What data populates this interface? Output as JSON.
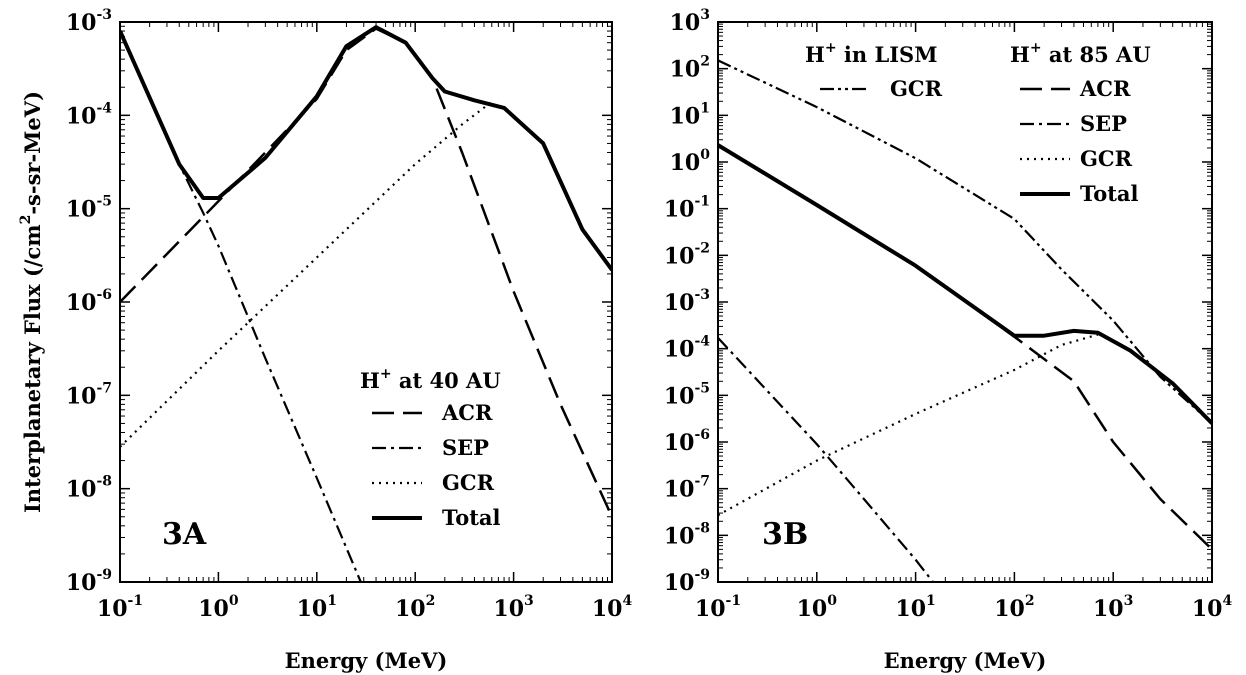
{
  "chart_data": [
    {
      "type": "line",
      "panel_label": "3A",
      "xlabel": "Energy (MeV)",
      "ylabel_main": "Interplanetary Flux (/cm",
      "ylabel_sup": "2",
      "ylabel_tail": "-s-sr-MeV)",
      "x_scale": "log",
      "y_scale": "log",
      "xlim": [
        0.1,
        10000
      ],
      "ylim": [
        1e-09,
        0.001
      ],
      "x_ticks": [
        {
          "value": 0.1,
          "base": "10",
          "exp": "-1"
        },
        {
          "value": 1,
          "base": "10",
          "exp": "0"
        },
        {
          "value": 10,
          "base": "10",
          "exp": "1"
        },
        {
          "value": 100,
          "base": "10",
          "exp": "2"
        },
        {
          "value": 1000,
          "base": "10",
          "exp": "3"
        },
        {
          "value": 10000,
          "base": "10",
          "exp": "4"
        }
      ],
      "y_ticks": [
        {
          "value": 1e-09,
          "base": "10",
          "exp": "-9"
        },
        {
          "value": 1e-08,
          "base": "10",
          "exp": "-8"
        },
        {
          "value": 1e-07,
          "base": "10",
          "exp": "-7"
        },
        {
          "value": 1e-06,
          "base": "10",
          "exp": "-6"
        },
        {
          "value": 1e-05,
          "base": "10",
          "exp": "-5"
        },
        {
          "value": 0.0001,
          "base": "10",
          "exp": "-4"
        },
        {
          "value": 0.001,
          "base": "10",
          "exp": "-3"
        }
      ],
      "legend_title_main": "H",
      "legend_title_sup": "+",
      "legend_title_tail": " at 40 AU",
      "legend": [
        {
          "label": "ACR",
          "style": "dashed"
        },
        {
          "label": "SEP",
          "style": "dashdot"
        },
        {
          "label": "GCR",
          "style": "dotted"
        },
        {
          "label": "Total",
          "style": "thick"
        }
      ],
      "series": [
        {
          "label": "ACR",
          "style": "dashed",
          "x": [
            0.1,
            1,
            10,
            20,
            40,
            80,
            150,
            300,
            1000,
            3000,
            10000
          ],
          "y": [
            1e-06,
            1.2e-05,
            0.00015,
            0.0005,
            0.00085,
            0.0006,
            0.00025,
            4e-05,
            1.3e-06,
            8e-08,
            5e-09
          ]
        },
        {
          "label": "SEP",
          "style": "dashdot",
          "x": [
            0.1,
            0.4,
            0.7,
            1,
            3,
            10,
            28
          ],
          "y": [
            0.0008,
            3e-05,
            9e-06,
            4e-06,
            2.5e-07,
            1.3e-08,
            1e-09
          ]
        },
        {
          "label": "GCR",
          "style": "dotted",
          "x": [
            0.1,
            1,
            10,
            100,
            300,
            600
          ],
          "y": [
            2.8e-08,
            3e-07,
            3e-06,
            3e-05,
            8e-05,
            0.00014
          ]
        },
        {
          "label": "Total",
          "style": "thick",
          "x": [
            0.1,
            0.4,
            0.7,
            1,
            3,
            10,
            20,
            40,
            80,
            150,
            200,
            400,
            800,
            2000,
            5000,
            10000
          ],
          "y": [
            0.0008,
            3e-05,
            1.3e-05,
            1.3e-05,
            3.5e-05,
            0.00016,
            0.00055,
            0.00088,
            0.0006,
            0.00025,
            0.00018,
            0.000145,
            0.00012,
            5e-05,
            6e-06,
            2.2e-06
          ]
        }
      ]
    },
    {
      "type": "line",
      "panel_label": "3B",
      "xlabel": "Energy (MeV)",
      "x_scale": "log",
      "y_scale": "log",
      "xlim": [
        0.1,
        10000
      ],
      "ylim": [
        1e-09,
        1000
      ],
      "x_ticks": [
        {
          "value": 0.1,
          "base": "10",
          "exp": "-1"
        },
        {
          "value": 1,
          "base": "10",
          "exp": "0"
        },
        {
          "value": 10,
          "base": "10",
          "exp": "1"
        },
        {
          "value": 100,
          "base": "10",
          "exp": "2"
        },
        {
          "value": 1000,
          "base": "10",
          "exp": "3"
        },
        {
          "value": 10000,
          "base": "10",
          "exp": "4"
        }
      ],
      "y_ticks": [
        {
          "value": 1e-09,
          "base": "10",
          "exp": "-9"
        },
        {
          "value": 1e-08,
          "base": "10",
          "exp": "-8"
        },
        {
          "value": 1e-07,
          "base": "10",
          "exp": "-7"
        },
        {
          "value": 1e-06,
          "base": "10",
          "exp": "-6"
        },
        {
          "value": 1e-05,
          "base": "10",
          "exp": "-5"
        },
        {
          "value": 0.0001,
          "base": "10",
          "exp": "-4"
        },
        {
          "value": 0.001,
          "base": "10",
          "exp": "-3"
        },
        {
          "value": 0.01,
          "base": "10",
          "exp": "-2"
        },
        {
          "value": 0.1,
          "base": "10",
          "exp": "-1"
        },
        {
          "value": 1,
          "base": "10",
          "exp": "0"
        },
        {
          "value": 10,
          "base": "10",
          "exp": "1"
        },
        {
          "value": 100,
          "base": "10",
          "exp": "2"
        },
        {
          "value": 1000,
          "base": "10",
          "exp": "3"
        }
      ],
      "legend_lism_main": "H",
      "legend_lism_sup": "+",
      "legend_lism_tail": " in LISM",
      "legend_lism": [
        {
          "label": "GCR",
          "style": "dashdotdot"
        }
      ],
      "legend_title_main": "H",
      "legend_title_sup": "+",
      "legend_title_tail": " at 85 AU",
      "legend": [
        {
          "label": "ACR",
          "style": "dashed"
        },
        {
          "label": "SEP",
          "style": "dashdot"
        },
        {
          "label": "GCR",
          "style": "dotted"
        },
        {
          "label": "Total",
          "style": "thick"
        }
      ],
      "series": [
        {
          "label": "GCR (LISM)",
          "style": "dashdotdot",
          "x": [
            0.1,
            1,
            10,
            100,
            300,
            1000,
            3000,
            10000
          ],
          "y": [
            150,
            15,
            1.2,
            0.06,
            0.005,
            0.0004,
            2.5e-05,
            2.5e-06
          ]
        },
        {
          "label": "ACR",
          "style": "dashed",
          "x": [
            0.1,
            1,
            10,
            100,
            200,
            400,
            1000,
            3000,
            10000
          ],
          "y": [
            2.3,
            0.12,
            0.006,
            0.00018,
            6e-05,
            2e-05,
            1e-06,
            6e-08,
            5e-09
          ]
        },
        {
          "label": "SEP",
          "style": "dashdot",
          "x": [
            0.1,
            1,
            3,
            10,
            15
          ],
          "y": [
            0.00017,
            9e-07,
            6e-08,
            3e-09,
            1e-09
          ]
        },
        {
          "label": "GCR",
          "style": "dotted",
          "x": [
            0.1,
            1,
            10,
            100,
            300,
            700
          ],
          "y": [
            2.7e-08,
            4e-07,
            4e-06,
            3.5e-05,
            0.00012,
            0.0002
          ]
        },
        {
          "label": "Total",
          "style": "thick",
          "x": [
            0.1,
            1,
            10,
            100,
            200,
            400,
            700,
            1500,
            4000,
            10000
          ],
          "y": [
            2.3,
            0.12,
            0.006,
            0.00019,
            0.00019,
            0.00024,
            0.00022,
            9e-05,
            1.8e-05,
            2.5e-06
          ]
        }
      ]
    }
  ]
}
